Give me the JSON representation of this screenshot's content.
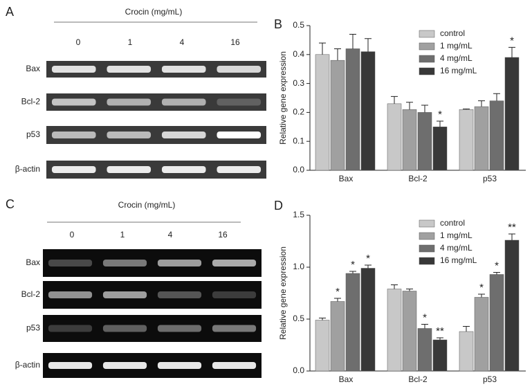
{
  "gels": [
    {
      "panel_label": "A",
      "treatment": "Crocin (mg/mL)",
      "doses": [
        "0",
        "1",
        "4",
        "16"
      ],
      "genes": [
        "Bax",
        "Bcl-2",
        "p53",
        "β-actin"
      ]
    },
    {
      "panel_label": "C",
      "treatment": "Crocin (mg/mL)",
      "doses": [
        "0",
        "1",
        "4",
        "16"
      ],
      "genes": [
        "Bax",
        "Bcl-2",
        "p53",
        "β-actin"
      ]
    }
  ],
  "chart_data": [
    {
      "type": "bar",
      "panel_label": "B",
      "y_label": "Relative gene expression",
      "categories": [
        "Bax",
        "Bcl-2",
        "p53"
      ],
      "ylim": [
        0,
        0.5
      ],
      "yticks": [
        {
          "value": 0,
          "label": "0.0"
        },
        0.1,
        0.2,
        0.3,
        0.4,
        0.5
      ],
      "legend": "top-right",
      "series": [
        {
          "name": "control",
          "color": "#c8c8c8",
          "values": [
            0.4,
            0.23,
            0.21
          ],
          "errors": [
            0.04,
            0.025,
            0.002
          ],
          "marks": [
            null,
            null,
            null
          ]
        },
        {
          "name": "1 mg/mL",
          "color": "#a0a0a0",
          "values": [
            0.38,
            0.21,
            0.22
          ],
          "errors": [
            0.04,
            0.025,
            0.02
          ],
          "marks": [
            null,
            null,
            null
          ]
        },
        {
          "name": "4 mg/mL",
          "color": "#6e6e6e",
          "values": [
            0.42,
            0.2,
            0.24
          ],
          "errors": [
            0.05,
            0.025,
            0.025
          ],
          "marks": [
            null,
            null,
            null
          ]
        },
        {
          "name": "16 mg/mL",
          "color": "#383838",
          "values": [
            0.41,
            0.15,
            0.39
          ],
          "errors": [
            0.045,
            0.02,
            0.035
          ],
          "marks": [
            null,
            "*",
            "*"
          ]
        }
      ]
    },
    {
      "type": "bar",
      "panel_label": "D",
      "y_label": "Relative gene expression",
      "categories": [
        "Bax",
        "Bcl-2",
        "p53"
      ],
      "ylim": [
        0,
        1.5
      ],
      "yticks": [
        {
          "value": 0,
          "label": "0.0"
        },
        0.5,
        {
          "value": 1,
          "label": "1.0"
        },
        1.5
      ],
      "legend": "top-right",
      "series": [
        {
          "name": "control",
          "color": "#c8c8c8",
          "values": [
            0.49,
            0.79,
            0.38
          ],
          "errors": [
            0.02,
            0.04,
            0.05
          ],
          "marks": [
            null,
            null,
            null
          ]
        },
        {
          "name": "1 mg/mL",
          "color": "#a0a0a0",
          "values": [
            0.67,
            0.77,
            0.71
          ],
          "errors": [
            0.03,
            0.02,
            0.03
          ],
          "marks": [
            "*",
            null,
            "*"
          ]
        },
        {
          "name": "4 mg/mL",
          "color": "#6e6e6e",
          "values": [
            0.94,
            0.41,
            0.93
          ],
          "errors": [
            0.02,
            0.04,
            0.02
          ],
          "marks": [
            "*",
            "*",
            "*"
          ]
        },
        {
          "name": "16 mg/mL",
          "color": "#383838",
          "values": [
            0.99,
            0.3,
            1.26
          ],
          "errors": [
            0.03,
            0.02,
            0.06
          ],
          "marks": [
            "*",
            "**",
            "**"
          ]
        }
      ]
    }
  ]
}
